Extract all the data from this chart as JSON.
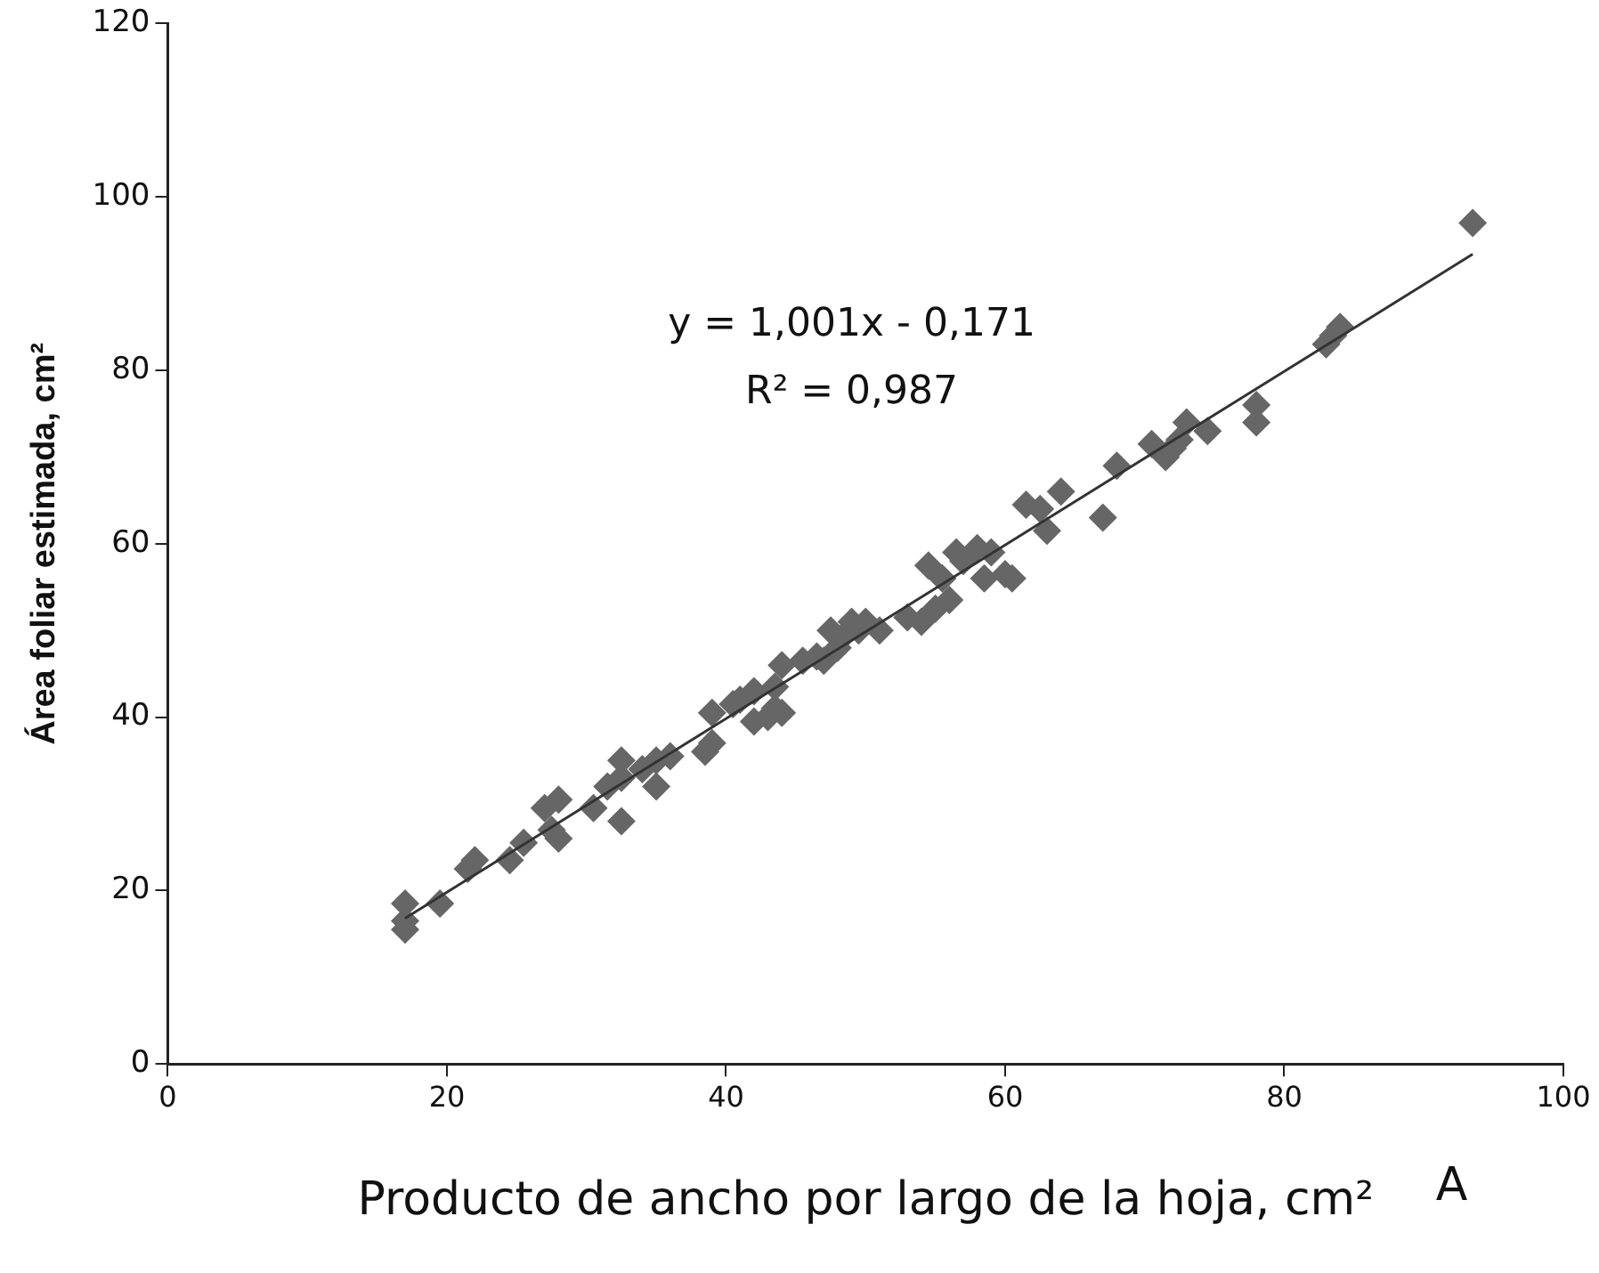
{
  "chart_data": {
    "type": "scatter",
    "xlabel": "Producto de ancho por largo de la hoja, cm²",
    "ylabel": "Área foliar estimada, cm²",
    "xlim": [
      0,
      100
    ],
    "xticks": [
      0,
      20,
      40,
      60,
      80,
      100
    ],
    "ylim": [
      0,
      120
    ],
    "yticks": [
      0,
      20,
      40,
      60,
      80,
      100,
      120
    ],
    "grid": false,
    "legend": false,
    "marker": "diamond",
    "annotations": [
      "y = 1,001x - 0,171",
      "R² = 0,987",
      "A"
    ],
    "series": [
      {
        "color": "#666666",
        "x": [
          17,
          17,
          17,
          19.5,
          21.5,
          22,
          24.5,
          25.5,
          27,
          27.5,
          28,
          28,
          30.5,
          31.5,
          32.5,
          32.5,
          32.5,
          34,
          35,
          35,
          36,
          38.5,
          39,
          39,
          40.5,
          41,
          42,
          42,
          43,
          43.5,
          43.5,
          44,
          44,
          45.5,
          46.5,
          47,
          47.5,
          48,
          48.5,
          49,
          49.5,
          50,
          51,
          53,
          54,
          54.5,
          55,
          55.5,
          56,
          56.5,
          57,
          58,
          59,
          58.5,
          60,
          60.5,
          61.5,
          62.5,
          63,
          64,
          67,
          68,
          70.5,
          71.5,
          72,
          72.5,
          73,
          74.5,
          78,
          78,
          83,
          83.5,
          84,
          93.5
        ],
        "values": [
          15.5,
          16.5,
          18.5,
          18.5,
          22.5,
          23.5,
          23.5,
          25.5,
          29.5,
          27,
          30.5,
          26,
          29.5,
          32,
          33,
          35,
          28,
          34,
          35,
          32,
          35.5,
          36,
          37,
          40.5,
          41.5,
          42,
          43,
          39.5,
          40,
          43.5,
          41,
          40.5,
          46,
          46.5,
          47,
          46.5,
          50,
          48,
          49.5,
          51,
          50,
          51,
          50,
          51.5,
          51,
          57.5,
          52.5,
          56,
          53.5,
          59,
          58,
          59.5,
          59,
          56,
          56.5,
          56,
          64.5,
          64,
          61.5,
          66,
          63,
          69,
          71.5,
          70,
          71,
          72,
          74,
          73,
          74,
          76,
          83,
          84,
          85,
          97
        ]
      },
      {
        "type": "line",
        "color": "#333333",
        "x": [
          17,
          93.5
        ],
        "values": [
          16.8,
          93.4
        ],
        "marker": "none",
        "line_style": "solid"
      }
    ]
  }
}
